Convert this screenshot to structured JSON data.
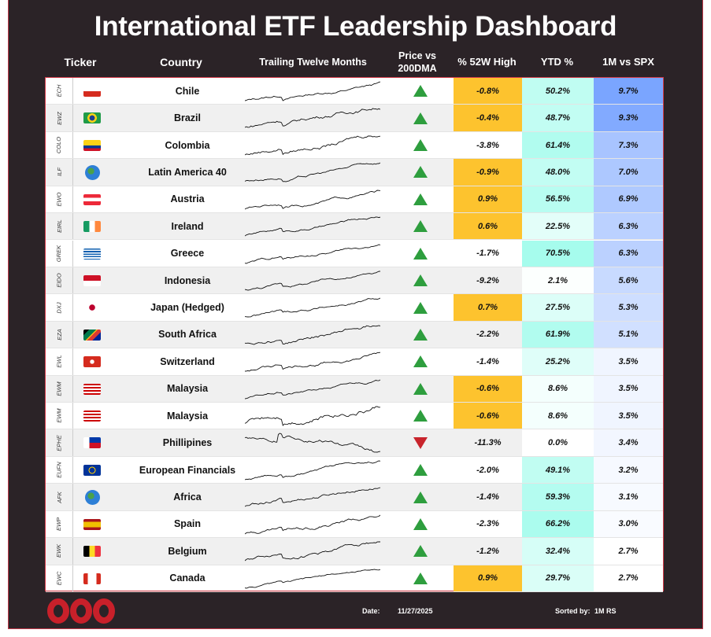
{
  "title": "International ETF Leadership Dashboard",
  "headers": {
    "ticker": "Ticker",
    "country": "Country",
    "ttm": "Trailing Twelve Months",
    "price_line1": "Price vs",
    "price_line2": "200DMA",
    "high52": "% 52W High",
    "ytd": "YTD %",
    "rs": "1M vs SPX"
  },
  "colors": {
    "highlight": "#fdc32e",
    "ytd_max": "#a6fced",
    "rs_max": "#7aa5ff",
    "up": "#2e9e3e",
    "down": "#c8242c"
  },
  "rows": [
    {
      "ticker": "ECH",
      "flag": "chile-flag-icon",
      "country": "Chile",
      "above_200dma": true,
      "high52": "-0.8%",
      "hl": true,
      "ytd": "50.2%",
      "rs": "9.7%"
    },
    {
      "ticker": "EWZ",
      "flag": "brazil-flag-icon",
      "country": "Brazil",
      "above_200dma": true,
      "high52": "-0.4%",
      "hl": true,
      "ytd": "48.7%",
      "rs": "9.3%"
    },
    {
      "ticker": "COLO",
      "flag": "colombia-flag-icon",
      "country": "Colombia",
      "above_200dma": true,
      "high52": "-3.8%",
      "hl": false,
      "ytd": "61.4%",
      "rs": "7.3%"
    },
    {
      "ticker": "ILF",
      "flag": "globe-americas-icon",
      "country": "Latin America 40",
      "above_200dma": true,
      "high52": "-0.9%",
      "hl": true,
      "ytd": "48.0%",
      "rs": "7.0%"
    },
    {
      "ticker": "EWO",
      "flag": "austria-flag-icon",
      "country": "Austria",
      "above_200dma": true,
      "high52": "0.9%",
      "hl": true,
      "ytd": "56.5%",
      "rs": "6.9%"
    },
    {
      "ticker": "EIRL",
      "flag": "ireland-flag-icon",
      "country": "Ireland",
      "above_200dma": true,
      "high52": "0.6%",
      "hl": true,
      "ytd": "22.5%",
      "rs": "6.3%"
    },
    {
      "ticker": "GREK",
      "flag": "greece-flag-icon",
      "country": "Greece",
      "above_200dma": true,
      "high52": "-1.7%",
      "hl": false,
      "ytd": "70.5%",
      "rs": "6.3%"
    },
    {
      "ticker": "EIDO",
      "flag": "indonesia-flag-icon",
      "country": "Indonesia",
      "above_200dma": true,
      "high52": "-9.2%",
      "hl": false,
      "ytd": "2.1%",
      "rs": "5.6%"
    },
    {
      "ticker": "DXJ",
      "flag": "japan-flag-icon",
      "country": "Japan (Hedged)",
      "above_200dma": true,
      "high52": "0.7%",
      "hl": true,
      "ytd": "27.5%",
      "rs": "5.3%"
    },
    {
      "ticker": "EZA",
      "flag": "south-africa-flag-icon",
      "country": "South Africa",
      "above_200dma": true,
      "high52": "-2.2%",
      "hl": false,
      "ytd": "61.9%",
      "rs": "5.1%"
    },
    {
      "ticker": "EWL",
      "flag": "switzerland-flag-icon",
      "country": "Switzerland",
      "above_200dma": true,
      "high52": "-1.4%",
      "hl": false,
      "ytd": "25.2%",
      "rs": "3.5%"
    },
    {
      "ticker": "EWM",
      "flag": "malaysia-flag-icon",
      "country": "Malaysia",
      "above_200dma": true,
      "high52": "-0.6%",
      "hl": true,
      "ytd": "8.6%",
      "rs": "3.5%"
    },
    {
      "ticker": "EWM",
      "flag": "malaysia-flag-icon",
      "country": "Malaysia",
      "above_200dma": true,
      "high52": "-0.6%",
      "hl": true,
      "ytd": "8.6%",
      "rs": "3.5%"
    },
    {
      "ticker": "EPHE",
      "flag": "philippines-flag-icon",
      "country": "Phillipines",
      "above_200dma": false,
      "high52": "-11.3%",
      "hl": false,
      "ytd": "0.0%",
      "rs": "3.4%"
    },
    {
      "ticker": "EUFN",
      "flag": "eu-flag-icon",
      "country": "European Financials",
      "above_200dma": true,
      "high52": "-2.0%",
      "hl": false,
      "ytd": "49.1%",
      "rs": "3.2%"
    },
    {
      "ticker": "AFK",
      "flag": "globe-africa-icon",
      "country": "Africa",
      "above_200dma": true,
      "high52": "-1.4%",
      "hl": false,
      "ytd": "59.3%",
      "rs": "3.1%"
    },
    {
      "ticker": "EWP",
      "flag": "spain-flag-icon",
      "country": "Spain",
      "above_200dma": true,
      "high52": "-2.3%",
      "hl": false,
      "ytd": "66.2%",
      "rs": "3.0%"
    },
    {
      "ticker": "EWK",
      "flag": "belgium-flag-icon",
      "country": "Belgium",
      "above_200dma": true,
      "high52": "-1.2%",
      "hl": false,
      "ytd": "32.4%",
      "rs": "2.7%"
    },
    {
      "ticker": "EWC",
      "flag": "canada-flag-icon",
      "country": "Canada",
      "above_200dma": true,
      "high52": "0.9%",
      "hl": true,
      "ytd": "29.7%",
      "rs": "2.7%"
    }
  ],
  "footer": {
    "date_label": "Date:",
    "date": "11/27/2025",
    "sorted_label": "Sorted by:",
    "sorted_value": "1M RS"
  }
}
